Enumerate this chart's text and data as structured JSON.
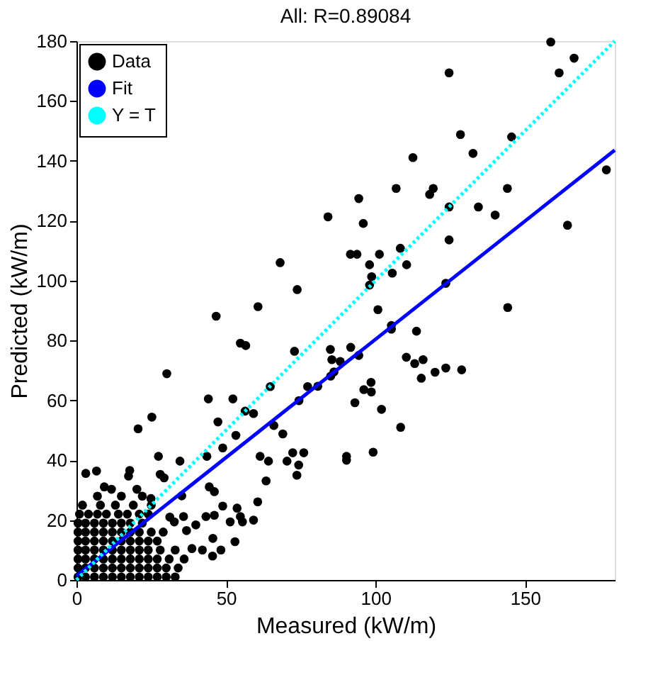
{
  "chart_data": {
    "type": "scatter",
    "title": "All: R=0.89084",
    "xlabel": "Measured (kW/m)",
    "ylabel": "Predicted (kW/m)",
    "xlim": [
      0,
      180
    ],
    "xticks": [
      0,
      50,
      100,
      150
    ],
    "ylim": [
      0,
      180
    ],
    "yticks": [
      0,
      20,
      40,
      60,
      80,
      100,
      120,
      140,
      160,
      180
    ],
    "grid": false,
    "legend": "top left",
    "series": [
      {
        "name": "Data",
        "marker": "circle",
        "color": "#000000",
        "x": [
          158.6,
          124.6,
          161.4,
          166.4,
          128.4,
          145.5,
          132.6,
          112.5,
          177.2,
          106.9,
          119.3,
          118.1,
          144.1,
          94.4,
          84.1,
          95.9,
          124.6,
          134.4,
          140,
          124.6,
          164.2,
          91.6,
          93.8,
          101.3,
          108.3,
          98,
          110.4,
          98.7,
          98,
          105.6,
          68.1,
          73.8,
          60.7,
          123.5,
          100.8,
          144.2,
          46.7,
          105.3,
          105.3,
          113.7,
          54.8,
          56.6,
          72.9,
          84.9,
          91.7,
          94.4,
          85.4,
          88.2,
          110.3,
          113.1,
          115.9,
          115.3,
          119.9,
          123.5,
          128.8,
          30.2,
          85,
          86.1,
          98.5,
          96.1,
          98.6,
          64.8,
          77.3,
          80.7,
          93.1,
          44.1,
          52.3,
          74.4,
          102,
          25.2,
          20.6,
          47.3,
          56.4,
          59.2,
          66,
          69,
          108.4,
          53.3,
          48.9,
          61.4,
          64.2,
          70.4,
          72.3,
          76,
          74.3,
          73.7,
          90.3,
          90.3,
          99.2,
          27.4,
          34.6,
          43.6,
          3.1,
          6.7,
          17.8,
          17.4,
          28,
          29.3,
          63.4,
          44.4,
          46.1,
          60.6,
          35.2,
          48.9,
          53.7,
          54.8,
          51.4,
          55.5,
          59.2,
          43.3,
          46.1,
          39.9,
          35.8,
          36.8,
          45.6,
          53,
          48.3,
          45.5,
          42.1,
          38.6,
          31.2,
          32.7,
          20.2,
          24.9,
          9.3,
          11.7,
          0.5,
          3,
          6,
          9,
          12,
          15,
          18,
          21,
          24,
          27,
          30,
          33,
          0.5,
          3,
          6,
          9,
          12,
          15,
          18,
          21,
          24,
          27,
          30,
          34,
          0.5,
          3,
          6,
          9,
          12,
          15,
          18,
          21,
          24,
          27,
          31,
          36,
          0.5,
          3,
          6,
          9,
          12,
          15,
          18,
          21,
          24,
          28,
          33,
          0.5,
          3,
          6,
          9,
          12,
          15,
          18,
          21,
          24,
          27,
          0.5,
          3,
          6,
          9,
          12,
          15,
          18,
          21,
          25,
          29,
          0.5,
          3,
          6,
          9,
          12,
          15,
          18,
          22,
          1,
          4,
          7,
          10,
          14,
          17,
          21,
          24,
          2,
          8,
          13,
          19,
          25,
          7,
          15,
          22
        ],
        "values": [
          179.7,
          169.4,
          169.4,
          174.3,
          148.8,
          148,
          142.5,
          141.1,
          137,
          130.8,
          130.8,
          128.8,
          130.8,
          127.4,
          121.3,
          119.1,
          124.6,
          124.6,
          121.9,
          113.6,
          118.5,
          108.8,
          108.8,
          108.8,
          110.8,
          105.3,
          105.3,
          101.3,
          98.5,
          102.5,
          106,
          97,
          91.3,
          99.1,
          90.3,
          91,
          88.1,
          85,
          83.8,
          83.1,
          79.1,
          78.3,
          76.4,
          77,
          77.7,
          75,
          73.6,
          73,
          74.4,
          72.3,
          73.6,
          67.4,
          69.4,
          70.8,
          70.2,
          68.9,
          68.1,
          69.5,
          66,
          63.6,
          62.8,
          64.6,
          64.6,
          64.7,
          59.2,
          60.5,
          60.5,
          59.9,
          57,
          54.4,
          50.5,
          52.8,
          56.4,
          55.6,
          51.6,
          48.8,
          51,
          48.3,
          44.1,
          41.3,
          39.7,
          39.7,
          42.5,
          42.5,
          38.4,
          35,
          41.3,
          40,
          42.7,
          41.3,
          39.7,
          41.3,
          35.6,
          36.4,
          36.6,
          34.7,
          35.3,
          34.1,
          33.1,
          31.1,
          29.5,
          26.1,
          28.1,
          24.7,
          24,
          21.2,
          19.4,
          19.4,
          20,
          21.2,
          21.6,
          18.4,
          21.2,
          16.5,
          13.9,
          12.8,
          10,
          8,
          10,
          10.5,
          21,
          19.4,
          30.3,
          27.2,
          31.1,
          30.3,
          1,
          1,
          1,
          1,
          1,
          1,
          1,
          1,
          1,
          1,
          1,
          1,
          4,
          4,
          4,
          4,
          4,
          4,
          4,
          4,
          4,
          4,
          4,
          4,
          7,
          7,
          7,
          7,
          7,
          7,
          7,
          7,
          7,
          7,
          7,
          7,
          10,
          10,
          10,
          10,
          10,
          10,
          10,
          10,
          10,
          10,
          10,
          13,
          13,
          13,
          13,
          13,
          13,
          13,
          13,
          13,
          13,
          16,
          16,
          16,
          16,
          16,
          16,
          16,
          16,
          16,
          16,
          19,
          19,
          19,
          19,
          19,
          19,
          19,
          19,
          22,
          22,
          22,
          22,
          22,
          22,
          22,
          22,
          25,
          25,
          25,
          25,
          25,
          28,
          28,
          28
        ]
      },
      {
        "name": "Fit",
        "type": "line",
        "line_style": "solid",
        "color": "#0000ff",
        "x": [
          0,
          180
        ],
        "values": [
          1.4,
          143.6
        ]
      },
      {
        "name": "Y = T",
        "type": "line",
        "line_style": "dotted",
        "color": "#00ffff",
        "x": [
          0,
          180
        ],
        "values": [
          0,
          180
        ]
      }
    ]
  }
}
